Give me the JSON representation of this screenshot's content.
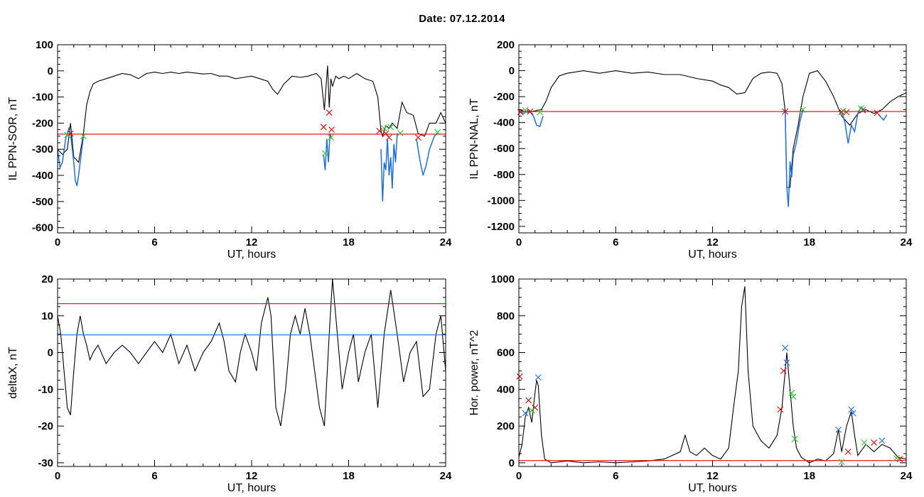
{
  "header": {
    "title": "Date:  07.12.2014"
  },
  "colors": {
    "black": "#000000",
    "red": "#e8000b",
    "blue": "#1f6fd6",
    "green": "#2ec82e"
  },
  "chart_data": [
    {
      "id": "p1",
      "type": "line",
      "xlabel": "UT, hours",
      "ylabel": "IL PPN-SOR, nT",
      "xlim": [
        0,
        24
      ],
      "ylim": [
        -620,
        100
      ],
      "xticks": [
        0,
        6,
        12,
        18,
        24
      ],
      "yticks": [
        100,
        0,
        -100,
        -200,
        -300,
        -400,
        -500,
        -600
      ],
      "ytick_labels": [
        "100",
        "0",
        "-100",
        "-200",
        "-300",
        "-400",
        "-500",
        "-600"
      ],
      "series": [
        {
          "color": "black",
          "x": [
            0,
            0.3,
            0.6,
            0.8,
            1.0,
            1.3,
            1.6,
            1.8,
            2.0,
            2.2,
            2.5,
            3.0,
            3.5,
            4.0,
            4.5,
            5.0,
            5.5,
            6.0,
            6.5,
            7.0,
            7.5,
            8.0,
            8.5,
            9.0,
            9.5,
            10.0,
            10.5,
            11.0,
            11.5,
            12.0,
            12.5,
            13.0,
            13.3,
            13.6,
            14.0,
            14.5,
            15.0,
            15.5,
            16.0,
            16.3,
            16.5,
            16.6,
            16.7,
            16.8,
            16.9,
            17.0,
            17.2,
            17.4,
            17.7,
            18.0,
            18.5,
            19.0,
            19.5,
            19.8,
            20.0,
            20.1,
            20.3,
            20.5,
            20.7,
            21.0,
            21.3,
            21.6,
            22.0,
            22.3,
            22.7,
            23.0,
            23.4,
            23.7,
            24.0
          ],
          "y": [
            -300,
            -320,
            -300,
            -200,
            -330,
            -350,
            -240,
            -130,
            -80,
            -50,
            -40,
            -30,
            -20,
            -10,
            -15,
            -30,
            -10,
            -5,
            -10,
            -5,
            -10,
            -5,
            -8,
            -12,
            -10,
            -20,
            -20,
            -30,
            -25,
            -20,
            -30,
            -40,
            -70,
            -90,
            -50,
            -20,
            -25,
            -20,
            -10,
            -30,
            -150,
            -60,
            20,
            -140,
            -30,
            -60,
            -20,
            -30,
            -20,
            -30,
            -10,
            -30,
            -40,
            -100,
            -230,
            -250,
            -210,
            -220,
            -200,
            -220,
            -120,
            -160,
            -170,
            -240,
            -250,
            -200,
            -200,
            -160,
            -200
          ]
        },
        {
          "color": "blue",
          "x": [
            0,
            0.15,
            0.3,
            0.5,
            0.7,
            0.8,
            1.0,
            1.1,
            1.2,
            1.3,
            1.4,
            1.5,
            1.6,
            16.45,
            16.55,
            16.65,
            16.75,
            16.85,
            16.95,
            20.0,
            20.1,
            20.2,
            20.3,
            20.4,
            20.5,
            20.6,
            20.7,
            20.8,
            20.9,
            21.0,
            22.2,
            22.4,
            22.6,
            22.8,
            23.0,
            23.3,
            23.5
          ],
          "y": [
            -300,
            -370,
            -350,
            -260,
            -220,
            -240,
            -350,
            -420,
            -440,
            -400,
            -350,
            -300,
            -250,
            -320,
            -380,
            -260,
            -350,
            -240,
            -260,
            -300,
            -500,
            -350,
            -380,
            -260,
            -400,
            -330,
            -450,
            -280,
            -350,
            -240,
            -260,
            -340,
            -400,
            -360,
            -300,
            -250,
            -240
          ],
          "segments": [
            [
              0,
              12
            ],
            [
              13,
              18
            ],
            [
              19,
              29
            ],
            [
              30,
              36
            ]
          ]
        },
        {
          "color": "red",
          "x": [
            0,
            24
          ],
          "y": [
            -242,
            -242
          ]
        }
      ],
      "markers": [
        {
          "color": "red",
          "x": [
            0.8,
            16.45,
            16.8,
            16.95,
            19.9,
            20.3,
            20.5,
            22.3
          ],
          "y": [
            -240,
            -215,
            -160,
            -225,
            -230,
            -240,
            -255,
            -255
          ]
        },
        {
          "color": "green",
          "x": [
            0.6,
            1.6,
            16.55,
            16.9,
            20.2,
            20.6,
            21.2,
            23.5
          ],
          "y": [
            -245,
            -250,
            -315,
            -255,
            -220,
            -215,
            -238,
            -235
          ]
        }
      ]
    },
    {
      "id": "p2",
      "type": "line",
      "xlabel": "UT, hours",
      "ylabel": "IL PPN-NAL, nT",
      "xlim": [
        0,
        24
      ],
      "ylim": [
        -1250,
        200
      ],
      "xticks": [
        0,
        6,
        12,
        18,
        24
      ],
      "yticks": [
        200,
        0,
        -200,
        -400,
        -600,
        -800,
        -1000,
        -1200
      ],
      "ytick_labels": [
        "200",
        "0",
        "-200",
        "-400",
        "-600",
        "-800",
        "-1000",
        "-1200"
      ],
      "series": [
        {
          "color": "black",
          "x": [
            0,
            0.5,
            1.0,
            1.4,
            1.7,
            2.0,
            2.5,
            3.0,
            4.0,
            5.0,
            6.0,
            7.0,
            8.0,
            9.0,
            10.0,
            11.0,
            12.0,
            12.5,
            13.0,
            13.5,
            14.0,
            14.5,
            15.0,
            15.5,
            16.0,
            16.3,
            16.5,
            16.6,
            16.8,
            17.0,
            17.3,
            17.6,
            18.0,
            18.5,
            19.0,
            19.5,
            20.0,
            20.5,
            21.0,
            21.5,
            22.0,
            22.5,
            23.0,
            23.5,
            24.0
          ],
          "y": [
            -300,
            -320,
            -310,
            -300,
            -230,
            -130,
            -40,
            -20,
            0,
            -20,
            0,
            -20,
            -10,
            -30,
            -30,
            -60,
            -80,
            -110,
            -130,
            -180,
            -170,
            -60,
            -20,
            -10,
            -20,
            -100,
            -310,
            -900,
            -900,
            -600,
            -420,
            -200,
            -20,
            0,
            -80,
            -200,
            -350,
            -420,
            -330,
            -300,
            -330,
            -300,
            -240,
            -200,
            -170
          ]
        },
        {
          "color": "blue",
          "x": [
            0,
            0.3,
            0.6,
            0.9,
            1.1,
            1.3,
            1.5,
            16.5,
            16.6,
            16.7,
            16.8,
            16.9,
            17.0,
            17.2,
            17.4,
            17.6,
            20.0,
            20.2,
            20.4,
            20.6,
            20.8,
            21.0,
            21.2,
            21.5,
            22.3,
            22.6,
            22.8
          ],
          "y": [
            -310,
            -330,
            -300,
            -350,
            -420,
            -430,
            -350,
            -310,
            -900,
            -1050,
            -700,
            -820,
            -650,
            -550,
            -400,
            -300,
            -310,
            -400,
            -560,
            -420,
            -470,
            -330,
            -280,
            -320,
            -340,
            -380,
            -340
          ],
          "segments": [
            [
              0,
              6
            ],
            [
              7,
              15
            ],
            [
              16,
              23
            ],
            [
              24,
              26
            ]
          ]
        },
        {
          "color": "red",
          "x": [
            0,
            24
          ],
          "y": [
            -315,
            -315
          ]
        }
      ],
      "markers": [
        {
          "color": "red",
          "x": [
            0.1,
            0.7,
            16.5,
            20.0,
            20.3,
            21.3,
            22.2
          ],
          "y": [
            -320,
            -315,
            -315,
            -318,
            -320,
            -305,
            -325
          ]
        },
        {
          "color": "green",
          "x": [
            0.4,
            1.3,
            17.6,
            20.1,
            21.2
          ],
          "y": [
            -305,
            -320,
            -300,
            -310,
            -290
          ]
        }
      ]
    },
    {
      "id": "p3",
      "type": "line",
      "xlabel": "UT, hours",
      "ylabel": "deltaX, nT",
      "xlim": [
        0,
        24
      ],
      "ylim": [
        -31,
        20
      ],
      "xticks": [
        0,
        6,
        12,
        18,
        24
      ],
      "yticks": [
        20,
        10,
        0,
        -10,
        -20,
        -30
      ],
      "ytick_labels": [
        "20",
        "10",
        "0",
        "-10",
        "-20",
        "-30"
      ],
      "series": [
        {
          "color": "black",
          "x": [
            0,
            0.2,
            0.4,
            0.6,
            0.8,
            1.0,
            1.2,
            1.4,
            1.6,
            1.8,
            2.0,
            2.2,
            2.5,
            3.0,
            3.5,
            4.0,
            4.5,
            5.0,
            5.5,
            6.0,
            6.5,
            7.0,
            7.5,
            8.0,
            8.5,
            9.0,
            9.5,
            10.0,
            10.3,
            10.6,
            11.0,
            11.3,
            11.6,
            12.0,
            12.3,
            12.6,
            13.0,
            13.2,
            13.5,
            13.8,
            14.1,
            14.4,
            14.7,
            15.0,
            15.3,
            15.6,
            15.9,
            16.2,
            16.5,
            16.8,
            17.0,
            17.3,
            17.6,
            18.0,
            18.3,
            18.6,
            19.0,
            19.4,
            19.8,
            20.2,
            20.6,
            21.0,
            21.4,
            21.8,
            22.2,
            22.6,
            23.0,
            23.4,
            23.7,
            24.0
          ],
          "y": [
            10,
            5,
            -5,
            -15,
            -17,
            -5,
            5,
            10,
            5,
            2,
            -2,
            0,
            2,
            -3,
            0,
            2,
            0,
            -3,
            0,
            3,
            0,
            5,
            -3,
            2,
            -5,
            0,
            3,
            8,
            3,
            -5,
            -8,
            0,
            5,
            0,
            -5,
            8,
            15,
            10,
            -15,
            -20,
            -10,
            5,
            10,
            5,
            12,
            5,
            -5,
            -15,
            -20,
            5,
            20,
            5,
            -10,
            0,
            5,
            -8,
            0,
            5,
            -15,
            5,
            17,
            5,
            -8,
            0,
            3,
            -12,
            -10,
            5,
            10,
            -5
          ]
        },
        {
          "color": "red",
          "x": [
            0,
            24
          ],
          "y": [
            13.3,
            13.3
          ]
        },
        {
          "color": "blue",
          "x": [
            0,
            24
          ],
          "y": [
            4.8,
            4.8
          ]
        }
      ],
      "markers": []
    },
    {
      "id": "p4",
      "type": "line",
      "xlabel": "UT, hours",
      "ylabel": "Hor. power, nT^2",
      "xlim": [
        0,
        24
      ],
      "ylim": [
        -20,
        1000
      ],
      "xticks": [
        0,
        6,
        12,
        18,
        24
      ],
      "yticks": [
        1000,
        800,
        600,
        400,
        200,
        0
      ],
      "ytick_labels": [
        "1000",
        "800",
        "600",
        "400",
        "200",
        "0"
      ],
      "series": [
        {
          "color": "black",
          "x": [
            0,
            0.2,
            0.4,
            0.6,
            0.8,
            1.0,
            1.1,
            1.2,
            1.4,
            1.6,
            2.0,
            3.0,
            4.0,
            5.0,
            6.0,
            7.0,
            8.0,
            9.0,
            10.0,
            10.3,
            10.6,
            11.0,
            11.5,
            12.0,
            12.5,
            13.0,
            13.3,
            13.6,
            13.8,
            14.0,
            14.2,
            14.5,
            15.0,
            15.5,
            16.0,
            16.3,
            16.5,
            16.6,
            16.8,
            17.0,
            17.2,
            17.5,
            18.0,
            18.5,
            19.0,
            19.5,
            19.8,
            20.0,
            20.3,
            20.6,
            20.8,
            21.0,
            21.5,
            22.0,
            22.5,
            23.0,
            23.5,
            24.0
          ],
          "y": [
            30,
            100,
            250,
            300,
            220,
            380,
            450,
            420,
            150,
            20,
            0,
            10,
            0,
            5,
            0,
            5,
            10,
            20,
            60,
            150,
            60,
            40,
            80,
            40,
            20,
            80,
            300,
            500,
            850,
            960,
            500,
            200,
            120,
            80,
            150,
            300,
            500,
            600,
            400,
            200,
            80,
            30,
            0,
            20,
            10,
            50,
            180,
            60,
            200,
            280,
            150,
            40,
            100,
            60,
            100,
            80,
            30,
            20
          ]
        },
        {
          "color": "red",
          "x": [
            0,
            24
          ],
          "y": [
            12,
            12
          ]
        }
      ],
      "markers": [
        {
          "color": "red",
          "x": [
            0.05,
            0.6,
            1.0,
            16.2,
            16.4,
            20.4,
            22.0,
            23.6
          ],
          "y": [
            470,
            340,
            300,
            290,
            500,
            60,
            110,
            20
          ]
        },
        {
          "color": "blue",
          "x": [
            0.4,
            1.2,
            16.5,
            16.6,
            19.8,
            20.6,
            20.7,
            22.5
          ],
          "y": [
            270,
            465,
            625,
            545,
            180,
            290,
            270,
            120
          ]
        },
        {
          "color": "green",
          "x": [
            0.8,
            16.9,
            17.0,
            17.1,
            20.0,
            21.4,
            23.4
          ],
          "y": [
            285,
            380,
            360,
            130,
            5,
            110,
            25
          ]
        }
      ]
    }
  ]
}
